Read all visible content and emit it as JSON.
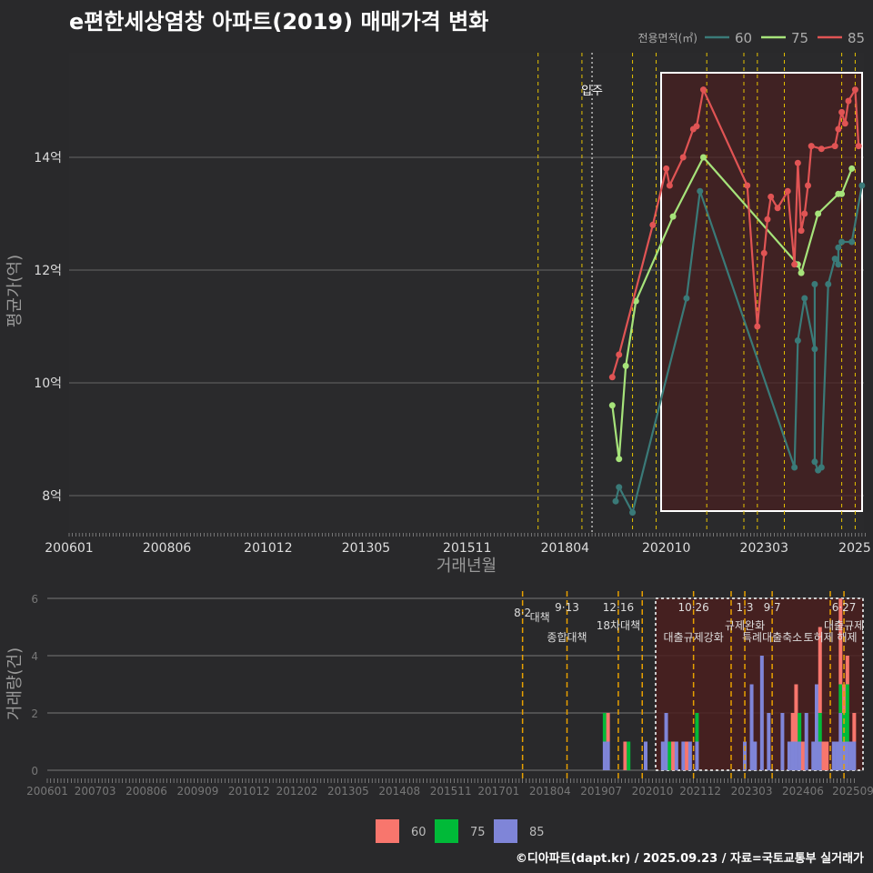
{
  "title": "e편한세상염창 아파트(2019) 매매가격 변화",
  "credit": "©디아파트(dapt.kr) / 2025.09.23 / 자료=국토교통부 실거래가",
  "colors": {
    "s60": "#3a7a78",
    "s75": "#a6e37a",
    "s85": "#e05454",
    "b60": "#f8766d",
    "b75": "#00ba38",
    "b85": "#7f85d8",
    "policy": "#e6c200"
  },
  "chart_data": [
    {
      "type": "line",
      "title": "e편한세상염창 아파트(2019) 매매가격 변화",
      "xlabel": "거래년월",
      "ylabel": "평균가(억)",
      "legend_title": "전용면적(㎡)",
      "legend": [
        "60",
        "75",
        "85"
      ],
      "legend_placement": "top-right",
      "xticks": [
        "200601",
        "200806",
        "201012",
        "201305",
        "201511",
        "201804",
        "202010",
        "202303",
        "2025"
      ],
      "yticks": [
        "8억",
        "10억",
        "12억",
        "14억"
      ],
      "ylim": [
        7.3,
        15.9
      ],
      "move_in_label": "입주",
      "move_in": "201812",
      "series": [
        {
          "name": "60",
          "points": [
            [
              "201907",
              7.9
            ],
            [
              "201908",
              8.15
            ],
            [
              "201912",
              7.7
            ],
            [
              "202104",
              11.5
            ],
            [
              "202108",
              13.4
            ],
            [
              "202312",
              8.5
            ],
            [
              "202401",
              10.75
            ],
            [
              "202403",
              11.5
            ],
            [
              "202406",
              10.6
            ],
            [
              "202406",
              11.75
            ],
            [
              "202406",
              8.6
            ],
            [
              "202407",
              8.45
            ],
            [
              "202408",
              8.5
            ],
            [
              "202410",
              11.75
            ],
            [
              "202412",
              12.2
            ],
            [
              "202501",
              12.1
            ],
            [
              "202501",
              12.4
            ],
            [
              "202502",
              12.5
            ],
            [
              "202505",
              12.5
            ],
            [
              "202508",
              13.5
            ]
          ]
        },
        {
          "name": "75",
          "points": [
            [
              "201906",
              9.6
            ],
            [
              "201908",
              8.65
            ],
            [
              "201910",
              10.3
            ],
            [
              "202001",
              11.45
            ],
            [
              "202012",
              12.95
            ],
            [
              "202109",
              14.0
            ],
            [
              "202401",
              12.1
            ],
            [
              "202402",
              11.95
            ],
            [
              "202407",
              13.0
            ],
            [
              "202501",
              13.35
            ],
            [
              "202502",
              13.35
            ],
            [
              "202505",
              13.8
            ]
          ]
        },
        {
          "name": "85",
          "points": [
            [
              "201906",
              10.1
            ],
            [
              "201908",
              10.5
            ],
            [
              "202006",
              12.8
            ],
            [
              "202010",
              13.8
            ],
            [
              "202011",
              13.5
            ],
            [
              "202103",
              14.0
            ],
            [
              "202106",
              14.5
            ],
            [
              "202107",
              14.55
            ],
            [
              "202109",
              15.2
            ],
            [
              "202210",
              13.5
            ],
            [
              "202301",
              11.0
            ],
            [
              "202303",
              12.3
            ],
            [
              "202304",
              12.9
            ],
            [
              "202305",
              13.3
            ],
            [
              "202307",
              13.1
            ],
            [
              "202310",
              13.4
            ],
            [
              "202312",
              12.1
            ],
            [
              "202401",
              13.9
            ],
            [
              "202402",
              12.7
            ],
            [
              "202403",
              13.0
            ],
            [
              "202404",
              13.5
            ],
            [
              "202405",
              14.2
            ],
            [
              "202408",
              14.15
            ],
            [
              "202412",
              14.2
            ],
            [
              "202501",
              14.5
            ],
            [
              "202502",
              14.8
            ],
            [
              "202503",
              14.6
            ],
            [
              "202504",
              15.0
            ],
            [
              "202506",
              15.2
            ],
            [
              "202507",
              14.2
            ]
          ]
        }
      ]
    },
    {
      "type": "bar",
      "ylabel": "거래량(건)",
      "yticks": [
        "0",
        "2",
        "4",
        "6"
      ],
      "ylim": [
        0,
        6
      ],
      "xticks": [
        "200601",
        "200703",
        "200806",
        "200909",
        "201012",
        "201202",
        "201305",
        "201408",
        "201511",
        "201701",
        "201804",
        "201907",
        "202010",
        "202112",
        "202303",
        "202406",
        "202509"
      ],
      "legend": [
        "60",
        "75",
        "85"
      ],
      "legend_placement": "bottom",
      "bars": [
        [
          "201908",
          [
            0,
            1,
            1
          ]
        ],
        [
          "201909",
          [
            1,
            0,
            1
          ]
        ],
        [
          "202002",
          [
            1,
            0,
            0
          ]
        ],
        [
          "202003",
          [
            0,
            1,
            0
          ]
        ],
        [
          "202008",
          [
            0,
            0,
            1
          ]
        ],
        [
          "202101",
          [
            0,
            0,
            1
          ]
        ],
        [
          "202102",
          [
            0,
            0,
            2
          ]
        ],
        [
          "202103",
          [
            0,
            1,
            0
          ]
        ],
        [
          "202104",
          [
            1,
            0,
            0
          ]
        ],
        [
          "202105",
          [
            0,
            0,
            1
          ]
        ],
        [
          "202107",
          [
            0,
            0,
            1
          ]
        ],
        [
          "202108",
          [
            1,
            0,
            0
          ]
        ],
        [
          "202109",
          [
            0,
            0,
            1
          ]
        ],
        [
          "202111",
          [
            0,
            1,
            1
          ]
        ],
        [
          "202301",
          [
            0,
            0,
            1
          ]
        ],
        [
          "202303",
          [
            0,
            0,
            3
          ]
        ],
        [
          "202304",
          [
            0,
            0,
            1
          ]
        ],
        [
          "202306",
          [
            0,
            0,
            4
          ]
        ],
        [
          "202308",
          [
            0,
            0,
            2
          ]
        ],
        [
          "202312",
          [
            0,
            0,
            2
          ]
        ],
        [
          "202402",
          [
            0,
            0,
            1
          ]
        ],
        [
          "202403",
          [
            1,
            0,
            1
          ]
        ],
        [
          "202404",
          [
            2,
            0,
            1
          ]
        ],
        [
          "202405",
          [
            0,
            1,
            1
          ]
        ],
        [
          "202406",
          [
            1,
            0,
            0
          ]
        ],
        [
          "202407",
          [
            0,
            0,
            2
          ]
        ],
        [
          "202409",
          [
            0,
            0,
            1
          ]
        ],
        [
          "202410",
          [
            0,
            0,
            3
          ]
        ],
        [
          "202411",
          [
            3,
            1,
            1
          ]
        ],
        [
          "202412",
          [
            1,
            0,
            0
          ]
        ],
        [
          "202501",
          [
            1,
            0,
            0
          ]
        ],
        [
          "202503",
          [
            0,
            0,
            1
          ]
        ],
        [
          "202504",
          [
            0,
            0,
            1
          ]
        ],
        [
          "202505",
          [
            3,
            1,
            2
          ]
        ],
        [
          "202506",
          [
            1,
            1,
            1
          ]
        ],
        [
          "202507",
          [
            1,
            2,
            1
          ]
        ],
        [
          "202508",
          [
            0,
            0,
            1
          ]
        ],
        [
          "202509",
          [
            1,
            0,
            1
          ]
        ]
      ],
      "policies": [
        {
          "month": "201708",
          "date": "8·2",
          "label": "대책"
        },
        {
          "month": "201809",
          "date": "9·13",
          "label": "종합대책"
        },
        {
          "month": "201912",
          "date": "12·16",
          "label": "18차대책"
        },
        {
          "month": "202007",
          "date": "",
          "label": ""
        },
        {
          "month": "202110",
          "date": "10·26",
          "label": "대출규제강화"
        },
        {
          "month": "202209",
          "date": "",
          "label": ""
        },
        {
          "month": "202301",
          "date": "1·3",
          "label": "규제완화"
        },
        {
          "month": "202309",
          "date": "9·7",
          "label": "특례대출축소"
        },
        {
          "month": "202502",
          "date": "",
          "label": "토허제 해제"
        },
        {
          "month": "202506",
          "date": "6·27",
          "label": "대출규제"
        }
      ]
    }
  ]
}
